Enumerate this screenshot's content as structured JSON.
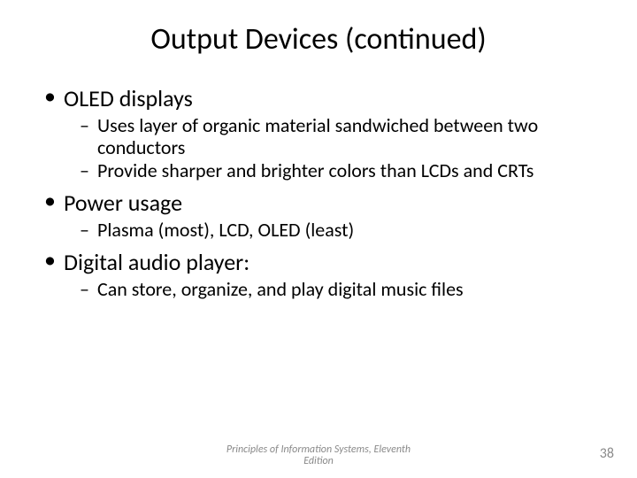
{
  "title": "Output Devices (continued)",
  "title_fontsize": 34,
  "bullets": {
    "level1_fontsize": 26,
    "level2_fontsize": 22,
    "bullet_char": "•",
    "dash_char": "–",
    "items": [
      {
        "label": "OLED displays",
        "sub": [
          "Uses layer of organic material sandwiched between two conductors",
          "Provide sharper and brighter colors than LCDs and CRTs"
        ]
      },
      {
        "label": "Power usage",
        "sub": [
          "Plasma (most), LCD, OLED (least)"
        ]
      },
      {
        "label": "Digital audio player:",
        "sub": [
          "Can store, organize, and play digital music files"
        ]
      }
    ]
  },
  "footer_line1": "Principles of Information Systems, Eleventh",
  "footer_line2": "Edition",
  "footer_fontsize": 12,
  "page_number": "38",
  "pagenum_fontsize": 16,
  "colors": {
    "text": "#000000",
    "footer": "#8a8a8a",
    "background": "#ffffff"
  }
}
